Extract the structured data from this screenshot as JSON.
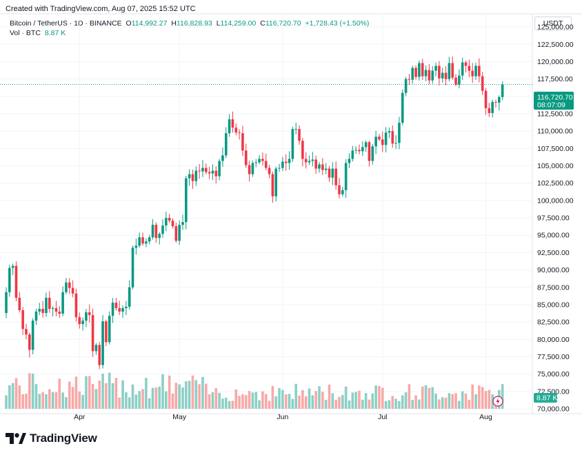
{
  "caption": "Created with TradingView.com, Aug 07, 2025 15:52 UTC",
  "legend": {
    "symbol": "Bitcoin / TetherUS · 1D · BINANCE",
    "o_key": "O",
    "o_val": "114,992.27",
    "h_key": "H",
    "h_val": "116,828.93",
    "l_key": "L",
    "l_val": "114,259.00",
    "c_key": "C",
    "c_val": "116,720.70",
    "change": "+1,728.43 (+1.50%)",
    "vol_key": "Vol · BTC",
    "vol_val": "8.87 K"
  },
  "currency": "USDT",
  "price_badge": {
    "price": "116,720.70",
    "countdown": "08:07:09"
  },
  "vol_badge": "8.87 K",
  "footer": {
    "brand": "TradingView"
  },
  "colors": {
    "up": "#089981",
    "down": "#f23645",
    "vol_up": "#8ccfc5",
    "vol_down": "#f7a9a7",
    "grid": "#f0f3fa"
  },
  "chart_data": {
    "type": "candlestick",
    "ylim": [
      70000,
      126500
    ],
    "y_ticks": [
      "125,000.00",
      "122,500.00",
      "120,000.00",
      "117,500.00",
      "115,000.00",
      "112,500.00",
      "110,000.00",
      "107,500.00",
      "105,000.00",
      "102,500.00",
      "100,000.00",
      "97,500.00",
      "95,000.00",
      "92,500.00",
      "90,000.00",
      "87,500.00",
      "85,000.00",
      "82,500.00",
      "80,000.00",
      "77,500.00",
      "75,000.00",
      "72,500.00",
      "70,000.00"
    ],
    "x_labels": [
      {
        "label": "Apr",
        "day_index": 22
      },
      {
        "label": "May",
        "day_index": 52
      },
      {
        "label": "Jun",
        "day_index": 83
      },
      {
        "label": "Jul",
        "day_index": 113
      },
      {
        "label": "Aug",
        "day_index": 144
      }
    ],
    "last_price": 116720.7,
    "closes": [
      86800,
      90300,
      90600,
      86000,
      84200,
      81500,
      80700,
      78500,
      82700,
      84000,
      84400,
      83800,
      86000,
      84400,
      84500,
      84000,
      83700,
      86800,
      88200,
      87400,
      86600,
      83200,
      82200,
      82700,
      83900,
      83500,
      78300,
      79200,
      76300,
      82600,
      79600,
      83400,
      85300,
      84500,
      84000,
      84500,
      84700,
      87500,
      93200,
      93500,
      94700,
      93800,
      94100,
      94700,
      96500,
      94600,
      95200,
      96400,
      97500,
      97100,
      96300,
      94200,
      96500,
      96900,
      103200,
      103800,
      102800,
      104300,
      104200,
      104700,
      104100,
      103900,
      104300,
      103500,
      105700,
      106500,
      109700,
      111700,
      110500,
      109800,
      109700,
      107200,
      105100,
      103800,
      105400,
      105500,
      106000,
      105700,
      104700,
      103800,
      100600,
      104600,
      104700,
      105600,
      105400,
      106000,
      110300,
      110300,
      108600,
      106000,
      105500,
      105700,
      105900,
      104600,
      105200,
      104400,
      104600,
      103300,
      104600,
      102200,
      100900,
      101500,
      105400,
      106000,
      107200,
      107300,
      107100,
      107700,
      108400,
      105700,
      107800,
      109200,
      108800,
      108000,
      109800,
      110000,
      108200,
      108300,
      111200,
      115500,
      117500,
      117400,
      119100,
      117800,
      119800,
      117900,
      118800,
      117300,
      118700,
      119400,
      117600,
      118400,
      117500,
      119800,
      117700,
      116700,
      118000,
      119900,
      119400,
      118700,
      117900,
      119400,
      117900,
      115800,
      113300,
      112600,
      114200,
      114100,
      114900,
      116700
    ]
  }
}
